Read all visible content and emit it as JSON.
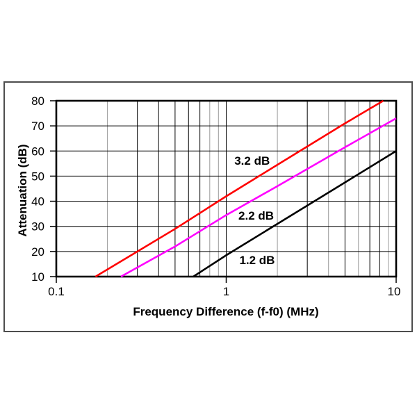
{
  "figure": {
    "background_color": "#ffffff",
    "outer_frame_color": "#4d4d4d",
    "plot_border_color": "#000000"
  },
  "chart_data": {
    "type": "line",
    "title": "",
    "xlabel": "Frequency Difference (f-f0) (MHz)",
    "ylabel": "Attenuation (dB)",
    "x_scale": "log",
    "y_scale": "linear",
    "xlim": [
      0.1,
      10
    ],
    "ylim": [
      10,
      80
    ],
    "grid": true,
    "legend_position": "inline-labels",
    "x_ticks": [
      {
        "value": 0.1,
        "label": "0.1"
      },
      {
        "value": 1,
        "label": "1"
      },
      {
        "value": 10,
        "label": "10"
      }
    ],
    "y_ticks": [
      {
        "value": 10,
        "label": "10"
      },
      {
        "value": 20,
        "label": "20"
      },
      {
        "value": 30,
        "label": "30"
      },
      {
        "value": 40,
        "label": "40"
      },
      {
        "value": 50,
        "label": "50"
      },
      {
        "value": 60,
        "label": "60"
      },
      {
        "value": 70,
        "label": "70"
      },
      {
        "value": 80,
        "label": "80"
      }
    ],
    "gridlines": {
      "vertical_values": [
        0.2,
        0.3,
        0.4,
        0.5,
        0.6,
        0.7,
        0.8,
        0.9,
        1,
        2,
        3,
        4,
        5,
        6,
        7,
        8,
        9
      ],
      "vertical_gray_values": [
        0.2,
        0.8,
        0.9,
        2,
        4,
        6,
        9
      ],
      "horizontal_values": [
        20,
        30,
        40,
        50,
        60,
        70
      ],
      "line_color": "#000000",
      "gray_line_color": "#9a9a9a"
    },
    "series": [
      {
        "name": "3.2 dB",
        "color": "#ff0000",
        "points": [
          [
            0.17,
            10
          ],
          [
            0.3,
            20
          ],
          [
            0.5,
            29
          ],
          [
            1,
            42
          ],
          [
            2,
            54.5
          ],
          [
            5,
            71
          ],
          [
            8.4,
            80
          ]
        ],
        "label": {
          "text": "3.2 dB",
          "x": 1.42,
          "y": 56
        }
      },
      {
        "name": "2.2 dB",
        "color": "#ff00ff",
        "points": [
          [
            0.24,
            10
          ],
          [
            0.5,
            22
          ],
          [
            1,
            34.5
          ],
          [
            2,
            46
          ],
          [
            5,
            61.5
          ],
          [
            10,
            73
          ]
        ],
        "label": {
          "text": "2.2 dB",
          "x": 1.5,
          "y": 34
        }
      },
      {
        "name": "1.2 dB",
        "color": "#000000",
        "points": [
          [
            0.64,
            10
          ],
          [
            1,
            18.5
          ],
          [
            2,
            31
          ],
          [
            5,
            47.5
          ],
          [
            10,
            60
          ]
        ],
        "label": {
          "text": "1.2 dB",
          "x": 1.52,
          "y": 16.5
        }
      }
    ]
  }
}
